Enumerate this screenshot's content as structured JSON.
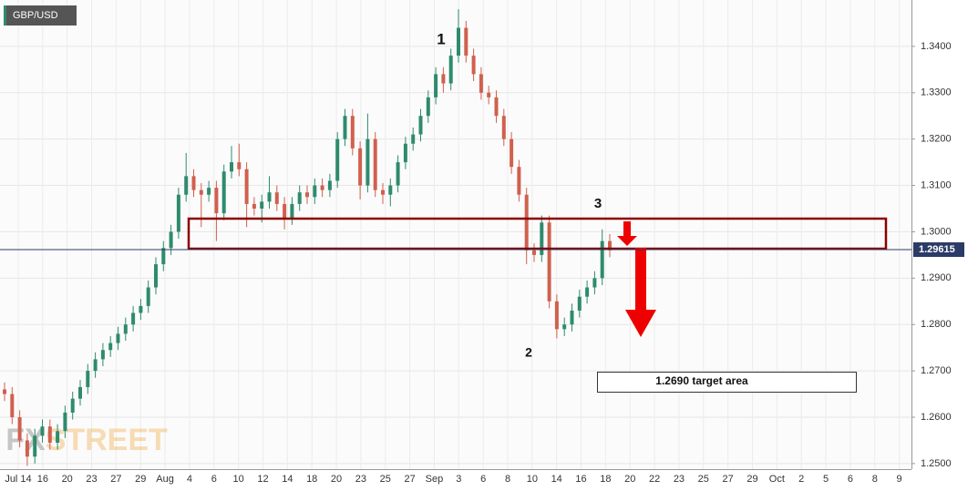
{
  "chart_data": {
    "type": "candlestick",
    "symbol": "GBP/USD",
    "watermark": [
      "FX",
      "STREET"
    ],
    "annotations": [
      "1",
      "2",
      "3"
    ],
    "target_label": "1.2690 target area",
    "up_color": "#2e8b6e",
    "down_color": "#d0604e",
    "grid": true,
    "ylim": [
      1.2488,
      1.35
    ],
    "yticks": [
      {
        "value": 1.25,
        "label": "1.2500"
      },
      {
        "value": 1.26,
        "label": "1.2600"
      },
      {
        "value": 1.27,
        "label": "1.2700"
      },
      {
        "value": 1.28,
        "label": "1.2800"
      },
      {
        "value": 1.29,
        "label": "1.2900"
      },
      {
        "value": 1.3,
        "label": "1.3000"
      },
      {
        "value": 1.31,
        "label": "1.3100"
      },
      {
        "value": 1.32,
        "label": "1.3200"
      },
      {
        "value": 1.33,
        "label": "1.3300"
      },
      {
        "value": 1.34,
        "label": "1.3400"
      }
    ],
    "last_price": 1.29615,
    "x_tick_labels": [
      "Jul 14",
      "16",
      "20",
      "23",
      "27",
      "29",
      "Aug",
      "4",
      "6",
      "10",
      "12",
      "14",
      "18",
      "20",
      "23",
      "25",
      "27",
      "Sep",
      "3",
      "6",
      "8",
      "10",
      "14",
      "16",
      "18",
      "20",
      "22",
      "23",
      "25",
      "27",
      "29",
      "Oct",
      "2",
      "5",
      "6",
      "8",
      "9"
    ],
    "open": [
      1.266,
      1.265,
      1.26,
      1.255,
      1.2515,
      1.256,
      1.258,
      1.2545,
      1.257,
      1.261,
      1.264,
      1.2665,
      1.27,
      1.2725,
      1.2745,
      1.276,
      1.278,
      1.28,
      1.2825,
      1.284,
      1.288,
      1.293,
      1.2965,
      1.3,
      1.308,
      1.312,
      1.309,
      1.308,
      1.3095,
      1.304,
      1.313,
      1.315,
      1.3135,
      1.306,
      1.305,
      1.3065,
      1.3085,
      1.306,
      1.303,
      1.306,
      1.3085,
      1.3075,
      1.31,
      1.309,
      1.311,
      1.32,
      1.325,
      1.318,
      1.31,
      1.32,
      1.309,
      1.308,
      1.31,
      1.315,
      1.319,
      1.321,
      1.325,
      1.329,
      1.334,
      1.332,
      1.338,
      1.344,
      1.338,
      1.334,
      1.33,
      1.329,
      1.325,
      1.32,
      1.314,
      1.308,
      1.296,
      1.295,
      1.302,
      1.285,
      1.279,
      1.28,
      1.283,
      1.286,
      1.288,
      1.29,
      1.298
    ],
    "high": [
      1.2675,
      1.2665,
      1.2615,
      1.2565,
      1.2575,
      1.2595,
      1.2595,
      1.2585,
      1.2625,
      1.2655,
      1.268,
      1.2715,
      1.274,
      1.276,
      1.2775,
      1.2795,
      1.2815,
      1.284,
      1.2855,
      1.2895,
      1.2945,
      1.298,
      1.3015,
      1.3095,
      1.317,
      1.3135,
      1.3105,
      1.311,
      1.311,
      1.3145,
      1.3185,
      1.319,
      1.315,
      1.3075,
      1.308,
      1.312,
      1.31,
      1.3075,
      1.3075,
      1.31,
      1.31,
      1.3115,
      1.3115,
      1.3125,
      1.3215,
      1.3265,
      1.3265,
      1.3195,
      1.3255,
      1.3215,
      1.3105,
      1.3115,
      1.3165,
      1.3205,
      1.3225,
      1.3265,
      1.3305,
      1.3355,
      1.3355,
      1.3395,
      1.348,
      1.3455,
      1.3395,
      1.3355,
      1.3315,
      1.3305,
      1.3265,
      1.3215,
      1.3155,
      1.3095,
      1.2975,
      1.3035,
      1.3035,
      1.2865,
      1.2815,
      1.2845,
      1.2875,
      1.2895,
      1.2915,
      1.3005,
      1.2995
    ],
    "low": [
      1.2635,
      1.2585,
      1.2535,
      1.2495,
      1.25,
      1.2545,
      1.253,
      1.253,
      1.2555,
      1.2595,
      1.2625,
      1.265,
      1.2685,
      1.271,
      1.273,
      1.2745,
      1.2765,
      1.2785,
      1.281,
      1.2825,
      1.2865,
      1.2915,
      1.295,
      1.2985,
      1.3065,
      1.3075,
      1.301,
      1.3065,
      1.298,
      1.3025,
      1.3115,
      1.312,
      1.301,
      1.3035,
      1.302,
      1.305,
      1.3045,
      1.3005,
      1.3015,
      1.3045,
      1.306,
      1.306,
      1.3075,
      1.3075,
      1.3095,
      1.3185,
      1.3165,
      1.307,
      1.3085,
      1.3075,
      1.306,
      1.3055,
      1.3085,
      1.3135,
      1.3175,
      1.3195,
      1.3235,
      1.3275,
      1.33,
      1.3305,
      1.3365,
      1.3365,
      1.3325,
      1.3285,
      1.3275,
      1.3235,
      1.3185,
      1.3125,
      1.3065,
      1.293,
      1.2935,
      1.2935,
      1.2835,
      1.277,
      1.2775,
      1.2785,
      1.2815,
      1.2845,
      1.2865,
      1.2885,
      1.2945
    ],
    "close": [
      1.265,
      1.26,
      1.255,
      1.2515,
      1.256,
      1.258,
      1.2545,
      1.257,
      1.261,
      1.264,
      1.2665,
      1.27,
      1.2725,
      1.2745,
      1.276,
      1.278,
      1.28,
      1.2825,
      1.284,
      1.288,
      1.293,
      1.2965,
      1.3,
      1.308,
      1.312,
      1.309,
      1.308,
      1.3095,
      1.304,
      1.313,
      1.315,
      1.3135,
      1.306,
      1.305,
      1.3065,
      1.3085,
      1.306,
      1.303,
      1.306,
      1.3085,
      1.3075,
      1.31,
      1.309,
      1.311,
      1.32,
      1.325,
      1.318,
      1.31,
      1.32,
      1.309,
      1.308,
      1.31,
      1.315,
      1.319,
      1.321,
      1.325,
      1.329,
      1.334,
      1.332,
      1.338,
      1.344,
      1.338,
      1.334,
      1.33,
      1.329,
      1.325,
      1.32,
      1.314,
      1.308,
      1.296,
      1.295,
      1.302,
      1.285,
      1.279,
      1.28,
      1.283,
      1.286,
      1.288,
      1.29,
      1.298,
      1.296
    ]
  }
}
